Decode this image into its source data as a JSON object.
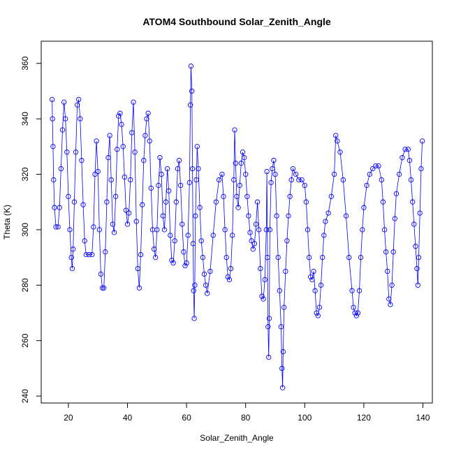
{
  "chart_data": {
    "type": "line",
    "title": "ATOM4 Southbound Solar_Zenith_Angle",
    "xlabel": "Solar_Zenith_Angle",
    "ylabel": "Theta (K)",
    "xlim": [
      10.8,
      143.2
    ],
    "ylim": [
      237.5,
      368
    ],
    "x_ticks": [
      20,
      40,
      60,
      80,
      100,
      120,
      140
    ],
    "y_ticks": [
      240,
      260,
      280,
      300,
      320,
      340,
      360
    ],
    "grid": false,
    "marker": "open-circle",
    "color": "#0000ff",
    "series": [
      {
        "values": [
          [
            14.5,
            347
          ],
          [
            14.6,
            340
          ],
          [
            14.8,
            330
          ],
          [
            15.0,
            318
          ],
          [
            15.3,
            308
          ],
          [
            15.8,
            301
          ],
          [
            16.5,
            301
          ],
          [
            17.0,
            308
          ],
          [
            17.5,
            322
          ],
          [
            18.0,
            336
          ],
          [
            18.5,
            346
          ],
          [
            19.0,
            340
          ],
          [
            19.5,
            328
          ],
          [
            20.0,
            312
          ],
          [
            20.5,
            300
          ],
          [
            21.0,
            290
          ],
          [
            21.3,
            286
          ],
          [
            21.6,
            293
          ],
          [
            22.0,
            310
          ],
          [
            22.5,
            328
          ],
          [
            23.0,
            345
          ],
          [
            23.5,
            347
          ],
          [
            24.0,
            340
          ],
          [
            24.5,
            325
          ],
          [
            25.0,
            309
          ],
          [
            25.5,
            296
          ],
          [
            26.0,
            291
          ],
          [
            27.0,
            291
          ],
          [
            28.0,
            291
          ],
          [
            28.5,
            301
          ],
          [
            29.0,
            320
          ],
          [
            29.5,
            332
          ],
          [
            30.0,
            321
          ],
          [
            30.5,
            300
          ],
          [
            31.0,
            284
          ],
          [
            31.5,
            279
          ],
          [
            32.0,
            279
          ],
          [
            32.5,
            292
          ],
          [
            33.0,
            310
          ],
          [
            33.5,
            326
          ],
          [
            34.0,
            334
          ],
          [
            34.5,
            318
          ],
          [
            35.0,
            302
          ],
          [
            35.5,
            299
          ],
          [
            36.0,
            312
          ],
          [
            36.5,
            329
          ],
          [
            37.0,
            341
          ],
          [
            37.5,
            342
          ],
          [
            38.0,
            338
          ],
          [
            38.5,
            330
          ],
          [
            39.0,
            319
          ],
          [
            39.5,
            307
          ],
          [
            40.0,
            302
          ],
          [
            40.5,
            306
          ],
          [
            41.0,
            318
          ],
          [
            41.5,
            335
          ],
          [
            42.0,
            346
          ],
          [
            42.5,
            328
          ],
          [
            43.0,
            303
          ],
          [
            43.5,
            286
          ],
          [
            44.0,
            279
          ],
          [
            44.5,
            291
          ],
          [
            45.0,
            309
          ],
          [
            45.5,
            325
          ],
          [
            46.0,
            334
          ],
          [
            46.5,
            340
          ],
          [
            47.0,
            342
          ],
          [
            47.5,
            332
          ],
          [
            48.0,
            315
          ],
          [
            48.5,
            300
          ],
          [
            49.0,
            293
          ],
          [
            49.5,
            290
          ],
          [
            50.0,
            300
          ],
          [
            50.5,
            316
          ],
          [
            51.0,
            326
          ],
          [
            51.5,
            320
          ],
          [
            52.0,
            305
          ],
          [
            52.5,
            300
          ],
          [
            53.0,
            310
          ],
          [
            53.5,
            322
          ],
          [
            54.0,
            314
          ],
          [
            54.5,
            298
          ],
          [
            55.0,
            289
          ],
          [
            55.5,
            288
          ],
          [
            56.0,
            296
          ],
          [
            56.5,
            310
          ],
          [
            57.0,
            322
          ],
          [
            57.5,
            325
          ],
          [
            58.0,
            316
          ],
          [
            58.5,
            302
          ],
          [
            59.0,
            292
          ],
          [
            59.5,
            287
          ],
          [
            60.0,
            288
          ],
          [
            60.5,
            298
          ],
          [
            61.0,
            317
          ],
          [
            61.3,
            345
          ],
          [
            61.5,
            359
          ],
          [
            61.8,
            350
          ],
          [
            62.0,
            322
          ],
          [
            62.2,
            295
          ],
          [
            62.4,
            278
          ],
          [
            62.6,
            268
          ],
          [
            62.8,
            280
          ],
          [
            63.0,
            305
          ],
          [
            63.3,
            318
          ],
          [
            63.6,
            330
          ],
          [
            64.0,
            322
          ],
          [
            64.5,
            308
          ],
          [
            65.0,
            296
          ],
          [
            65.5,
            290
          ],
          [
            66.0,
            284
          ],
          [
            66.5,
            280
          ],
          [
            67.0,
            277
          ],
          [
            68.0,
            285
          ],
          [
            69.0,
            298
          ],
          [
            70.0,
            310
          ],
          [
            71.0,
            318
          ],
          [
            72.0,
            320
          ],
          [
            72.5,
            312
          ],
          [
            73.0,
            300
          ],
          [
            73.5,
            290
          ],
          [
            74.0,
            283
          ],
          [
            74.5,
            282
          ],
          [
            75.0,
            286
          ],
          [
            75.5,
            298
          ],
          [
            76.0,
            318
          ],
          [
            76.3,
            336
          ],
          [
            76.6,
            324
          ],
          [
            77.0,
            312
          ],
          [
            77.5,
            308
          ],
          [
            78.0,
            316
          ],
          [
            78.5,
            324
          ],
          [
            79.0,
            328
          ],
          [
            79.5,
            326
          ],
          [
            80.0,
            320
          ],
          [
            80.5,
            312
          ],
          [
            81.0,
            305
          ],
          [
            81.5,
            299
          ],
          [
            82.0,
            296
          ],
          [
            82.5,
            293
          ],
          [
            83.0,
            295
          ],
          [
            83.5,
            302
          ],
          [
            84.0,
            310
          ],
          [
            84.5,
            300
          ],
          [
            85.0,
            286
          ],
          [
            85.5,
            276
          ],
          [
            86.0,
            275
          ],
          [
            86.5,
            282
          ],
          [
            87.0,
            300
          ],
          [
            87.2,
            321
          ],
          [
            87.4,
            290
          ],
          [
            87.6,
            265
          ],
          [
            87.8,
            254
          ],
          [
            88.0,
            268
          ],
          [
            88.2,
            300
          ],
          [
            88.6,
            317
          ],
          [
            89.0,
            322
          ],
          [
            89.5,
            325
          ],
          [
            90.0,
            320
          ],
          [
            90.5,
            305
          ],
          [
            91.0,
            290
          ],
          [
            91.5,
            278
          ],
          [
            92.0,
            265
          ],
          [
            92.3,
            250
          ],
          [
            92.5,
            243
          ],
          [
            92.7,
            256
          ],
          [
            93.0,
            272
          ],
          [
            93.5,
            285
          ],
          [
            94.0,
            296
          ],
          [
            94.5,
            305
          ],
          [
            95.0,
            312
          ],
          [
            95.5,
            318
          ],
          [
            96.0,
            322
          ],
          [
            97.0,
            320
          ],
          [
            98.0,
            318
          ],
          [
            99.0,
            318
          ],
          [
            100.0,
            316
          ],
          [
            100.5,
            310
          ],
          [
            101.0,
            300
          ],
          [
            101.5,
            290
          ],
          [
            102.0,
            283
          ],
          [
            102.5,
            282
          ],
          [
            103.0,
            285
          ],
          [
            103.5,
            278
          ],
          [
            104.0,
            270
          ],
          [
            104.5,
            269
          ],
          [
            105.0,
            272
          ],
          [
            105.5,
            280
          ],
          [
            106.0,
            290
          ],
          [
            106.5,
            298
          ],
          [
            107.0,
            303
          ],
          [
            108.0,
            306
          ],
          [
            109.0,
            312
          ],
          [
            110.0,
            320
          ],
          [
            110.5,
            334
          ],
          [
            111.0,
            332
          ],
          [
            112.0,
            328
          ],
          [
            113.0,
            318
          ],
          [
            114.0,
            305
          ],
          [
            115.0,
            290
          ],
          [
            116.0,
            278
          ],
          [
            116.5,
            272
          ],
          [
            117.0,
            270
          ],
          [
            117.5,
            269
          ],
          [
            118.0,
            270
          ],
          [
            118.5,
            278
          ],
          [
            119.0,
            290
          ],
          [
            119.5,
            300
          ],
          [
            120.0,
            308
          ],
          [
            121.0,
            316
          ],
          [
            122.0,
            320
          ],
          [
            123.0,
            322
          ],
          [
            124.0,
            323
          ],
          [
            125.0,
            323
          ],
          [
            126.0,
            318
          ],
          [
            126.5,
            310
          ],
          [
            127.0,
            300
          ],
          [
            127.5,
            292
          ],
          [
            128.0,
            285
          ],
          [
            128.5,
            275
          ],
          [
            129.0,
            273
          ],
          [
            129.5,
            280
          ],
          [
            130.0,
            292
          ],
          [
            130.5,
            304
          ],
          [
            131.0,
            313
          ],
          [
            132.0,
            320
          ],
          [
            133.0,
            326
          ],
          [
            134.0,
            329
          ],
          [
            135.0,
            329
          ],
          [
            135.5,
            325
          ],
          [
            136.0,
            318
          ],
          [
            136.5,
            310
          ],
          [
            137.0,
            302
          ],
          [
            137.5,
            294
          ],
          [
            138.0,
            286
          ],
          [
            138.3,
            280
          ],
          [
            138.6,
            290
          ],
          [
            139.0,
            306
          ],
          [
            139.4,
            322
          ],
          [
            139.8,
            332
          ]
        ]
      }
    ]
  }
}
